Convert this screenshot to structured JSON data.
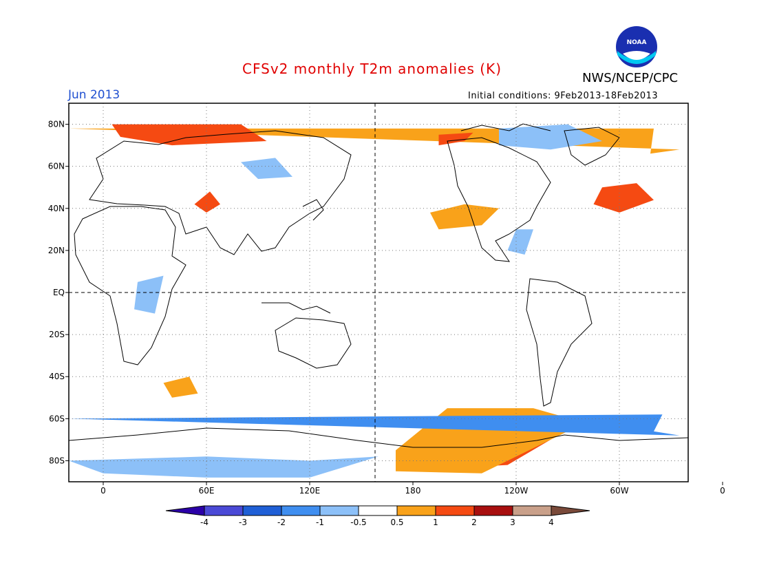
{
  "title": "CFSv2 monthly T2m anomalies (K)",
  "agency": "NWS/NCEP/CPC",
  "logo_text": "NOAA",
  "period": "Jun 2013",
  "initial_conditions": "Initial conditions: 9Feb2013-18Feb2013",
  "colors": {
    "title": "#e00000",
    "period": "#1f4fd0"
  },
  "lat_labels": [
    "80N",
    "60N",
    "40N",
    "20N",
    "EQ",
    "20S",
    "40S",
    "60S",
    "80S"
  ],
  "lon_labels": [
    "0",
    "60E",
    "120E",
    "180",
    "120W",
    "60W",
    "0"
  ],
  "colorbar": {
    "labels": [
      "-4",
      "-3",
      "-2",
      "-1",
      "-0.5",
      "0.5",
      "1",
      "2",
      "3",
      "4"
    ],
    "colors": [
      "#2b00a8",
      "#4a49d6",
      "#1f5fd6",
      "#3f8ef0",
      "#8cc0f8",
      "#ffffff",
      "#f9a21a",
      "#f54a12",
      "#a80f0f",
      "#c9a08a",
      "#7a4a3a"
    ]
  },
  "anomaly_regions": [
    {
      "level": "1-2",
      "color": "#f54a12",
      "lon_lat": [
        [
          -175,
          -70
        ],
        [
          -130,
          -72
        ],
        [
          -100,
          -70
        ],
        [
          -125,
          -82
        ],
        [
          -170,
          -84
        ]
      ]
    },
    {
      "level": "0.5-1",
      "color": "#f9a21a",
      "lon_lat": [
        [
          170,
          -75
        ],
        [
          -160,
          -55
        ],
        [
          -110,
          -55
        ],
        [
          -80,
          -62
        ],
        [
          -100,
          -70
        ],
        [
          -140,
          -86
        ],
        [
          170,
          -85
        ]
      ]
    },
    {
      "level": "0.5-1",
      "color": "#f9a21a",
      "lon_lat": [
        [
          -170,
          38
        ],
        [
          -150,
          42
        ],
        [
          -130,
          40
        ],
        [
          -140,
          32
        ],
        [
          -165,
          30
        ]
      ]
    },
    {
      "level": "1-2",
      "color": "#f54a12",
      "lon_lat": [
        [
          -70,
          50
        ],
        [
          -50,
          52
        ],
        [
          -40,
          44
        ],
        [
          -60,
          38
        ],
        [
          -75,
          42
        ]
      ]
    },
    {
      "level": "0.5-1",
      "color": "#f9a21a",
      "lon_lat": [
        [
          -40,
          78
        ],
        [
          -20,
          78
        ],
        [
          -25,
          68
        ],
        [
          -42,
          66
        ]
      ]
    },
    {
      "level": "1-2",
      "color": "#f54a12",
      "lon_lat": [
        [
          5,
          80
        ],
        [
          80,
          80
        ],
        [
          95,
          72
        ],
        [
          40,
          70
        ],
        [
          10,
          74
        ]
      ]
    },
    {
      "level": "0.5-1",
      "color": "#f9a21a",
      "lon_lat": [
        [
          35,
          -43
        ],
        [
          50,
          -40
        ],
        [
          55,
          -48
        ],
        [
          40,
          -50
        ]
      ]
    },
    {
      "level": "1-2",
      "color": "#f54a12",
      "lon_lat": [
        [
          53,
          42
        ],
        [
          62,
          48
        ],
        [
          68,
          42
        ],
        [
          60,
          38
        ]
      ]
    },
    {
      "level": "1-2",
      "color": "#f54a12",
      "lon_lat": [
        [
          -165,
          75
        ],
        [
          -145,
          76
        ],
        [
          -150,
          72
        ],
        [
          -165,
          70
        ]
      ]
    },
    {
      "level": "-1--0.5",
      "color": "#8cc0f8",
      "lon_lat": [
        [
          60,
          -78
        ],
        [
          120,
          -80
        ],
        [
          160,
          -78
        ],
        [
          120,
          -88
        ],
        [
          60,
          -88
        ],
        [
          0,
          -86
        ],
        [
          -20,
          -80
        ]
      ]
    },
    {
      "level": "-1--0.5",
      "color": "#8cc0f8",
      "lon_lat": [
        [
          80,
          62
        ],
        [
          100,
          64
        ],
        [
          110,
          55
        ],
        [
          90,
          54
        ]
      ]
    },
    {
      "level": "-1--0.5",
      "color": "#8cc0f8",
      "lon_lat": [
        [
          -130,
          78
        ],
        [
          -90,
          80
        ],
        [
          -70,
          72
        ],
        [
          -100,
          68
        ],
        [
          -130,
          70
        ]
      ]
    },
    {
      "level": "-2--1",
      "color": "#3f8ef0",
      "lon_lat": [
        [
          -35,
          -58
        ],
        [
          -20,
          -60
        ],
        [
          -25,
          -68
        ],
        [
          -40,
          -66
        ]
      ]
    },
    {
      "level": "-1--0.5",
      "color": "#8cc0f8",
      "lon_lat": [
        [
          20,
          5
        ],
        [
          35,
          8
        ],
        [
          30,
          -10
        ],
        [
          18,
          -8
        ]
      ]
    },
    {
      "level": "-1--0.5",
      "color": "#8cc0f8",
      "lon_lat": [
        [
          -125,
          20
        ],
        [
          -120,
          30
        ],
        [
          -110,
          30
        ],
        [
          -115,
          18
        ]
      ]
    }
  ]
}
